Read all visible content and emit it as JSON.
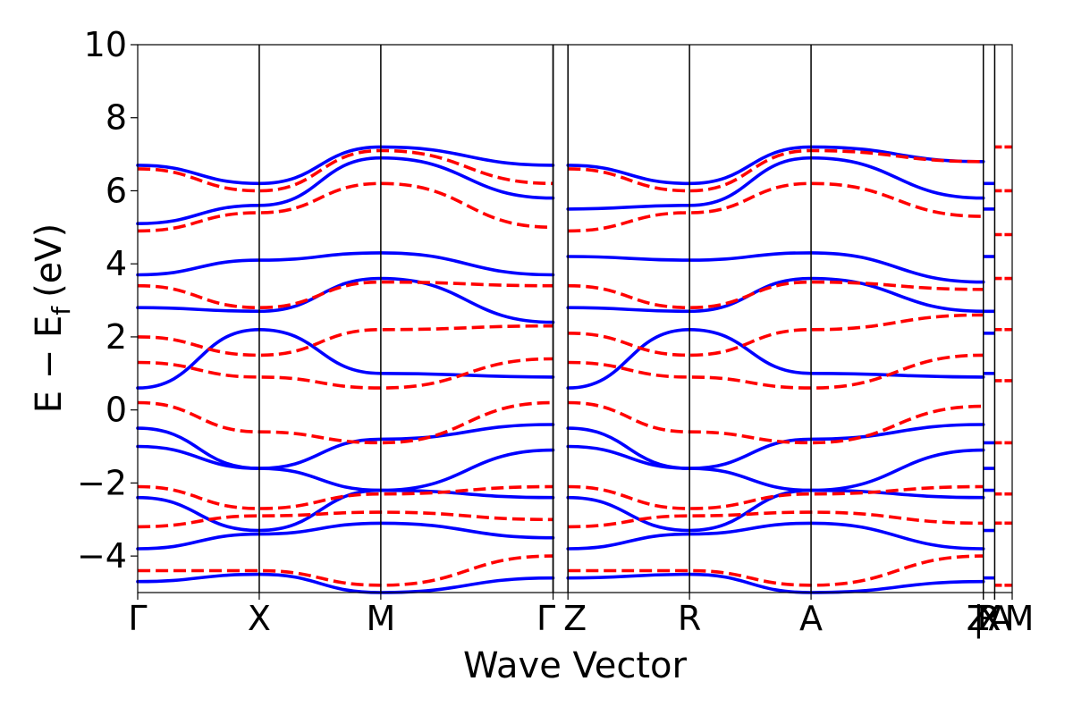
{
  "chart_data": {
    "type": "line",
    "title": "",
    "xlabel": "Wave Vector",
    "ylabel_main": "E − E",
    "ylabel_sub": "f",
    "ylabel_unit": "(eV)",
    "ylim": [
      -5,
      10
    ],
    "yticks": [
      10,
      8,
      6,
      4,
      2,
      0,
      -2,
      -4
    ],
    "ytick_labels": [
      "10",
      "8",
      "6",
      "4",
      "2",
      "0",
      "−2",
      "−4"
    ],
    "xlim": [
      0,
      1
    ],
    "high_symmetry_points": [
      {
        "label": "Γ",
        "x": 0.0
      },
      {
        "label": "X",
        "x": 0.139
      },
      {
        "label": "M",
        "x": 0.278
      },
      {
        "label": "Γ",
        "x": 0.475
      },
      {
        "label": "Z",
        "x": 0.492
      },
      {
        "label": "R",
        "x": 0.631
      },
      {
        "label": "A",
        "x": 0.77
      },
      {
        "label": "Z",
        "x": 0.967
      },
      {
        "label": "R",
        "x": 0.967
      },
      {
        "label": "|",
        "x": 0.98
      },
      {
        "label": "X",
        "x": 0.98
      },
      {
        "label": "A",
        "x": 0.98
      },
      {
        "label": "M",
        "x": 1.0
      }
    ],
    "grid": false,
    "colors": {
      "solid": "#0000ff",
      "dashed": "#ff0000",
      "axes": "#000000"
    },
    "series": [
      {
        "style": "solid",
        "color": "#0000ff",
        "x": [
          0,
          0.139,
          0.278,
          0.475
        ],
        "y": [
          6.7,
          6.2,
          7.2,
          6.7
        ]
      },
      {
        "style": "solid",
        "color": "#0000ff",
        "x": [
          0,
          0.139,
          0.278,
          0.475
        ],
        "y": [
          5.1,
          5.6,
          6.9,
          5.8
        ]
      },
      {
        "style": "solid",
        "color": "#0000ff",
        "x": [
          0,
          0.139,
          0.278,
          0.475
        ],
        "y": [
          3.7,
          4.1,
          4.3,
          3.7
        ]
      },
      {
        "style": "solid",
        "color": "#0000ff",
        "x": [
          0,
          0.139,
          0.278,
          0.475
        ],
        "y": [
          2.8,
          2.7,
          3.6,
          2.4
        ]
      },
      {
        "style": "solid",
        "color": "#0000ff",
        "x": [
          0,
          0.139,
          0.278,
          0.475
        ],
        "y": [
          0.6,
          2.2,
          1.0,
          0.9
        ]
      },
      {
        "style": "solid",
        "color": "#0000ff",
        "x": [
          0,
          0.139,
          0.278,
          0.475
        ],
        "y": [
          -0.5,
          -1.6,
          -0.8,
          -0.4
        ]
      },
      {
        "style": "solid",
        "color": "#0000ff",
        "x": [
          0,
          0.139,
          0.278,
          0.475
        ],
        "y": [
          -1.0,
          -1.6,
          -2.2,
          -1.1
        ]
      },
      {
        "style": "solid",
        "color": "#0000ff",
        "x": [
          0,
          0.139,
          0.278,
          0.475
        ],
        "y": [
          -2.4,
          -3.3,
          -2.2,
          -2.4
        ]
      },
      {
        "style": "solid",
        "color": "#0000ff",
        "x": [
          0,
          0.139,
          0.278,
          0.475
        ],
        "y": [
          -3.8,
          -3.4,
          -3.1,
          -3.5
        ]
      },
      {
        "style": "solid",
        "color": "#0000ff",
        "x": [
          0,
          0.139,
          0.278,
          0.475
        ],
        "y": [
          -4.7,
          -4.5,
          -5.0,
          -4.6
        ]
      },
      {
        "style": "dashed",
        "color": "#ff0000",
        "x": [
          0,
          0.139,
          0.278,
          0.475
        ],
        "y": [
          6.6,
          6.0,
          7.1,
          6.2
        ]
      },
      {
        "style": "dashed",
        "color": "#ff0000",
        "x": [
          0,
          0.139,
          0.278,
          0.475
        ],
        "y": [
          4.9,
          5.4,
          6.2,
          5.0
        ]
      },
      {
        "style": "dashed",
        "color": "#ff0000",
        "x": [
          0,
          0.139,
          0.278,
          0.475
        ],
        "y": [
          3.4,
          2.8,
          3.5,
          3.4
        ]
      },
      {
        "style": "dashed",
        "color": "#ff0000",
        "x": [
          0,
          0.139,
          0.278,
          0.475
        ],
        "y": [
          2.0,
          1.5,
          2.2,
          2.3
        ]
      },
      {
        "style": "dashed",
        "color": "#ff0000",
        "x": [
          0,
          0.139,
          0.278,
          0.475
        ],
        "y": [
          1.3,
          0.9,
          0.6,
          1.4
        ]
      },
      {
        "style": "dashed",
        "color": "#ff0000",
        "x": [
          0,
          0.139,
          0.278,
          0.475
        ],
        "y": [
          0.2,
          -0.6,
          -0.9,
          0.2
        ]
      },
      {
        "style": "dashed",
        "color": "#ff0000",
        "x": [
          0,
          0.139,
          0.278,
          0.475
        ],
        "y": [
          -2.1,
          -2.7,
          -2.3,
          -2.1
        ]
      },
      {
        "style": "dashed",
        "color": "#ff0000",
        "x": [
          0,
          0.139,
          0.278,
          0.475
        ],
        "y": [
          -3.2,
          -2.9,
          -2.8,
          -3.0
        ]
      },
      {
        "style": "dashed",
        "color": "#ff0000",
        "x": [
          0,
          0.139,
          0.278,
          0.475
        ],
        "y": [
          -4.4,
          -4.4,
          -4.8,
          -4.0
        ]
      },
      {
        "style": "solid",
        "color": "#0000ff",
        "x": [
          0.492,
          0.631,
          0.77,
          0.967
        ],
        "y": [
          6.7,
          6.2,
          7.2,
          6.8
        ]
      },
      {
        "style": "solid",
        "color": "#0000ff",
        "x": [
          0.492,
          0.631,
          0.77,
          0.967
        ],
        "y": [
          5.5,
          5.6,
          6.9,
          5.8
        ]
      },
      {
        "style": "solid",
        "color": "#0000ff",
        "x": [
          0.492,
          0.631,
          0.77,
          0.967
        ],
        "y": [
          4.2,
          4.1,
          4.3,
          3.5
        ]
      },
      {
        "style": "solid",
        "color": "#0000ff",
        "x": [
          0.492,
          0.631,
          0.77,
          0.967
        ],
        "y": [
          2.8,
          2.7,
          3.6,
          2.7
        ]
      },
      {
        "style": "solid",
        "color": "#0000ff",
        "x": [
          0.492,
          0.631,
          0.77,
          0.967
        ],
        "y": [
          0.6,
          2.2,
          1.0,
          0.9
        ]
      },
      {
        "style": "solid",
        "color": "#0000ff",
        "x": [
          0.492,
          0.631,
          0.77,
          0.967
        ],
        "y": [
          -0.5,
          -1.6,
          -0.8,
          -0.4
        ]
      },
      {
        "style": "solid",
        "color": "#0000ff",
        "x": [
          0.492,
          0.631,
          0.77,
          0.967
        ],
        "y": [
          -1.0,
          -1.6,
          -2.2,
          -1.1
        ]
      },
      {
        "style": "solid",
        "color": "#0000ff",
        "x": [
          0.492,
          0.631,
          0.77,
          0.967
        ],
        "y": [
          -2.4,
          -3.3,
          -2.2,
          -2.4
        ]
      },
      {
        "style": "solid",
        "color": "#0000ff",
        "x": [
          0.492,
          0.631,
          0.77,
          0.967
        ],
        "y": [
          -3.8,
          -3.4,
          -3.1,
          -3.8
        ]
      },
      {
        "style": "solid",
        "color": "#0000ff",
        "x": [
          0.492,
          0.631,
          0.77,
          0.967
        ],
        "y": [
          -4.6,
          -4.5,
          -5.0,
          -4.7
        ]
      },
      {
        "style": "dashed",
        "color": "#ff0000",
        "x": [
          0.492,
          0.631,
          0.77,
          0.967
        ],
        "y": [
          6.6,
          6.0,
          7.1,
          6.8
        ]
      },
      {
        "style": "dashed",
        "color": "#ff0000",
        "x": [
          0.492,
          0.631,
          0.77,
          0.967
        ],
        "y": [
          4.9,
          5.4,
          6.2,
          5.3
        ]
      },
      {
        "style": "dashed",
        "color": "#ff0000",
        "x": [
          0.492,
          0.631,
          0.77,
          0.967
        ],
        "y": [
          3.4,
          2.8,
          3.5,
          3.3
        ]
      },
      {
        "style": "dashed",
        "color": "#ff0000",
        "x": [
          0.492,
          0.631,
          0.77,
          0.967
        ],
        "y": [
          2.1,
          1.5,
          2.2,
          2.6
        ]
      },
      {
        "style": "dashed",
        "color": "#ff0000",
        "x": [
          0.492,
          0.631,
          0.77,
          0.967
        ],
        "y": [
          1.3,
          0.9,
          0.6,
          1.5
        ]
      },
      {
        "style": "dashed",
        "color": "#ff0000",
        "x": [
          0.492,
          0.631,
          0.77,
          0.967
        ],
        "y": [
          0.2,
          -0.6,
          -0.9,
          0.1
        ]
      },
      {
        "style": "dashed",
        "color": "#ff0000",
        "x": [
          0.492,
          0.631,
          0.77,
          0.967
        ],
        "y": [
          -2.1,
          -2.7,
          -2.3,
          -2.1
        ]
      },
      {
        "style": "dashed",
        "color": "#ff0000",
        "x": [
          0.492,
          0.631,
          0.77,
          0.967
        ],
        "y": [
          -3.2,
          -2.9,
          -2.8,
          -3.1
        ]
      },
      {
        "style": "dashed",
        "color": "#ff0000",
        "x": [
          0.492,
          0.631,
          0.77,
          0.967
        ],
        "y": [
          -4.4,
          -4.4,
          -4.8,
          -4.0
        ]
      }
    ]
  }
}
